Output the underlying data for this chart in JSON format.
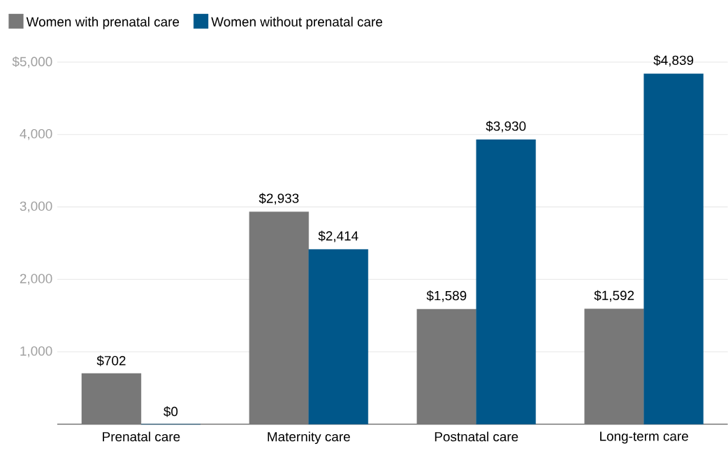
{
  "chart_data": {
    "type": "bar",
    "categories": [
      "Prenatal care",
      "Maternity care",
      "Postnatal care",
      "Long-term care"
    ],
    "series": [
      {
        "name": "Women with prenatal care",
        "color": "#787878",
        "values": [
          702,
          2933,
          1589,
          1592
        ],
        "value_labels": [
          "$702",
          "$2,933",
          "$1,589",
          "$1,592"
        ]
      },
      {
        "name": "Women without prenatal care",
        "color": "#00578a",
        "values": [
          0,
          2414,
          3930,
          4839
        ],
        "value_labels": [
          "$0",
          "$2,414",
          "$3,930",
          "$4,839"
        ]
      }
    ],
    "ylim": [
      0,
      5000
    ],
    "yticks": [
      {
        "value": 1000,
        "label": "1,000"
      },
      {
        "value": 2000,
        "label": "2,000"
      },
      {
        "value": 3000,
        "label": "3,000"
      },
      {
        "value": 4000,
        "label": "4,000"
      },
      {
        "value": 5000,
        "label": "$5,000"
      }
    ],
    "grid": "y",
    "legend": "top left"
  }
}
